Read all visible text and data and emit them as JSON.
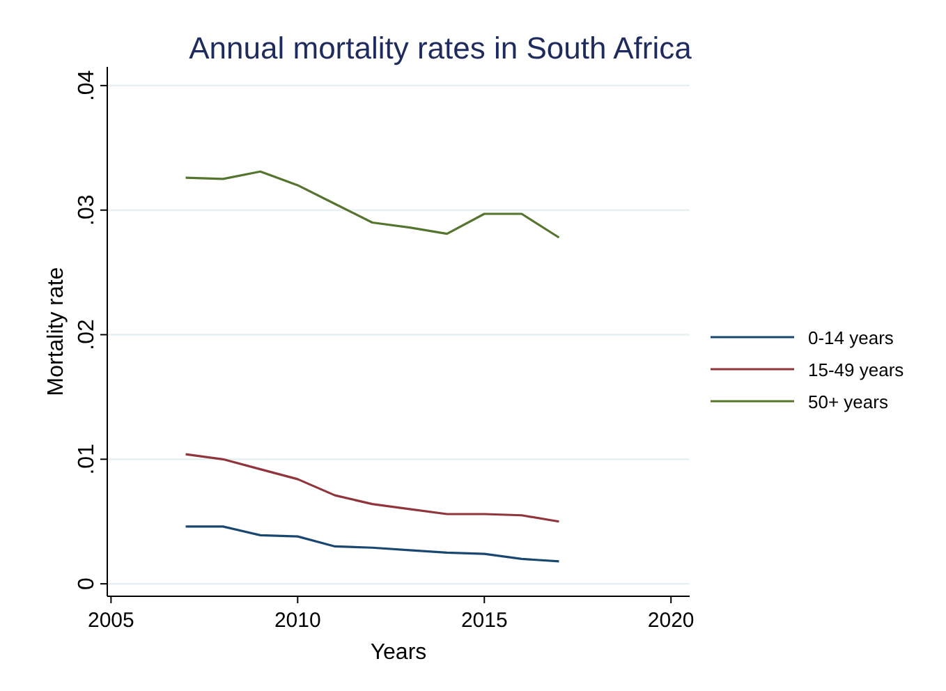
{
  "chart_data": {
    "type": "line",
    "title": "Annual mortality rates in South Africa",
    "xlabel": "Years",
    "ylabel": "Mortality rate",
    "x": [
      2007,
      2008,
      2009,
      2010,
      2011,
      2012,
      2013,
      2014,
      2015,
      2016,
      2017
    ],
    "series": [
      {
        "name": "0-14 years",
        "color": "#1a476f",
        "values": [
          0.0046,
          0.0046,
          0.0039,
          0.0038,
          0.003,
          0.0029,
          0.0027,
          0.0025,
          0.0024,
          0.002,
          0.0018
        ]
      },
      {
        "name": "15-49 years",
        "color": "#90353b",
        "values": [
          0.0104,
          0.01,
          0.0092,
          0.0084,
          0.0071,
          0.0064,
          0.006,
          0.0056,
          0.0056,
          0.0055,
          0.005
        ]
      },
      {
        "name": "50+ years",
        "color": "#55752f",
        "values": [
          0.0326,
          0.0325,
          0.0331,
          0.032,
          0.0305,
          0.029,
          0.0286,
          0.0281,
          0.0297,
          0.0297,
          0.0278
        ]
      }
    ],
    "xlim": [
      2004.9,
      2020.5
    ],
    "xticks": [
      2005,
      2010,
      2015,
      2020
    ],
    "ylim": [
      -0.001,
      0.0415
    ],
    "yticks": [
      0,
      {
        "value": 0.01,
        "label": ".01"
      },
      {
        "value": 0.02,
        "label": ".02"
      },
      {
        "value": 0.03,
        "label": ".03"
      },
      {
        "value": 0.04,
        "label": ".04"
      }
    ],
    "grid": "y",
    "legend": "right",
    "marker": "none",
    "line_style": "solid"
  }
}
